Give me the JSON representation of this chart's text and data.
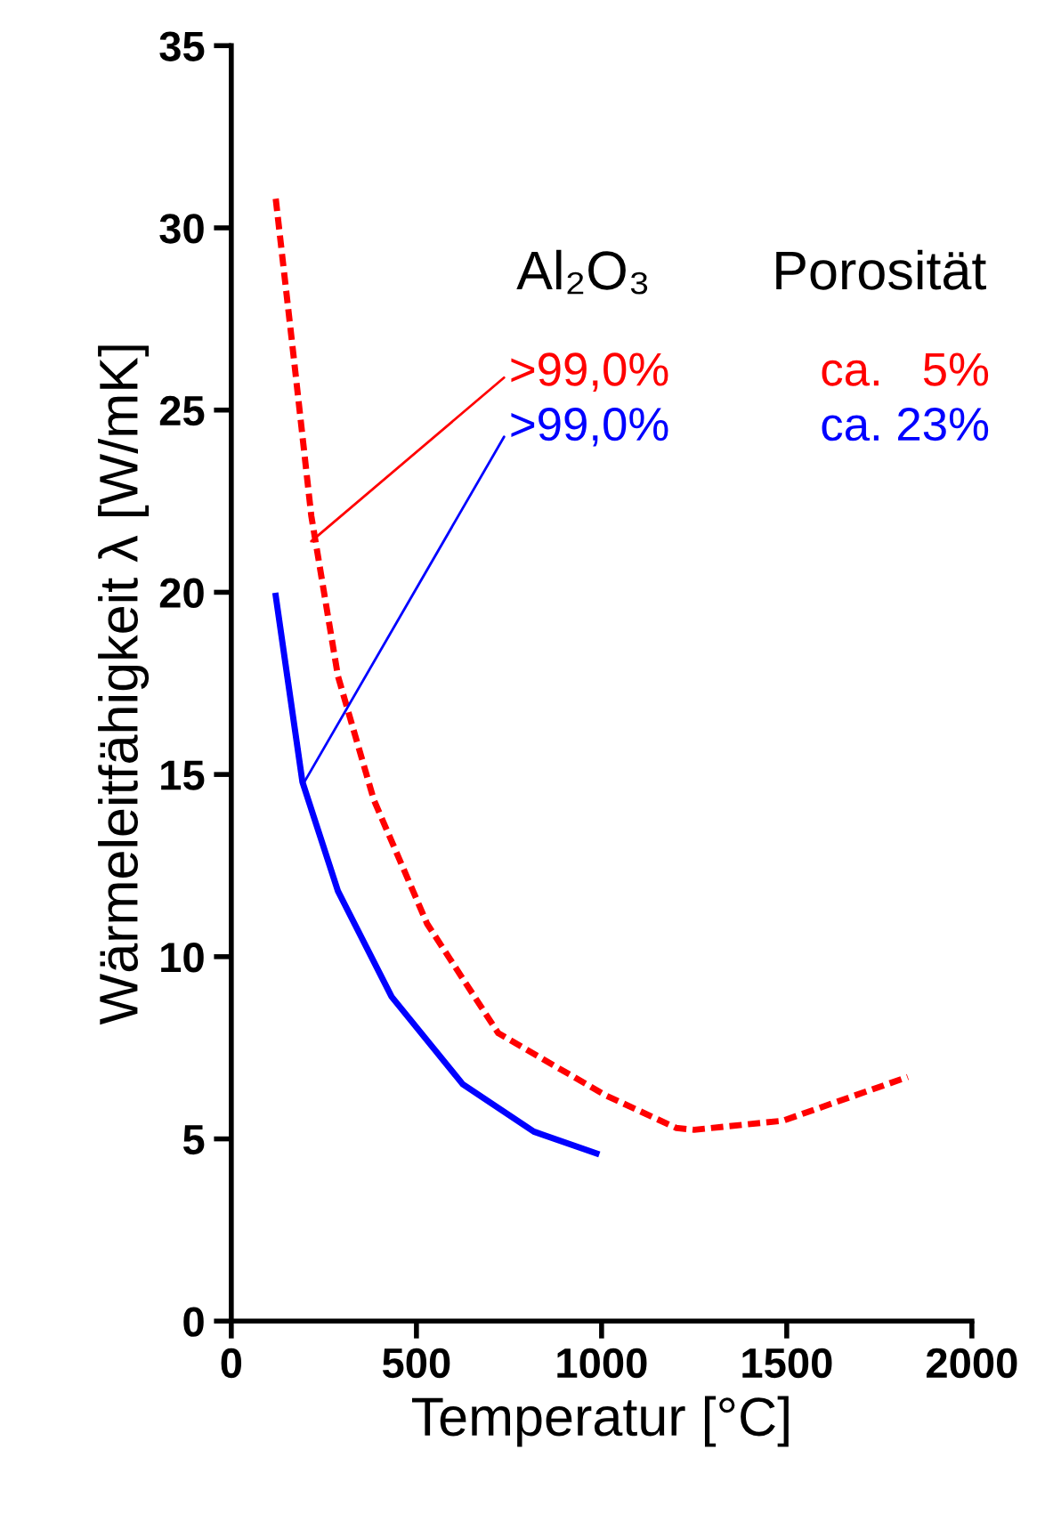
{
  "chart_data": {
    "type": "line",
    "xlabel": "Temperatur [°C]",
    "ylabel": "Wärmeleitfähigkeit λ [W/mK]",
    "xlim": [
      0,
      2000
    ],
    "xticks": [
      0,
      500,
      1000,
      1500,
      2000
    ],
    "ylim": [
      0,
      35
    ],
    "yticks": [
      0,
      5,
      10,
      15,
      20,
      25,
      30,
      35
    ],
    "grid": false,
    "legend": false,
    "series": [
      {
        "color": "#ff0000",
        "line_style": "dotted",
        "x": [
          120,
          168,
          216,
          288,
          385,
          529,
          721,
          1010,
          1202,
          1250,
          1490,
          1827
        ],
        "values": [
          30.8,
          26.5,
          22.1,
          17.7,
          14.3,
          10.9,
          7.9,
          6.2,
          5.3,
          5.25,
          5.5,
          6.7
        ]
      },
      {
        "color": "#0000ff",
        "line_style": "solid",
        "x": [
          120,
          192,
          288,
          433,
          625,
          817,
          986
        ],
        "values": [
          19.9,
          14.8,
          11.8,
          8.9,
          6.5,
          5.2,
          4.6
        ]
      }
    ],
    "annotations": [
      {
        "text": ">99,0%",
        "x": 216,
        "y": 21.4
      },
      {
        "text": ">99,0%",
        "x": 192,
        "y": 14.7
      },
      "Al₂O₃",
      "Porosität",
      "ca.   5%",
      "ca. 23%"
    ]
  }
}
